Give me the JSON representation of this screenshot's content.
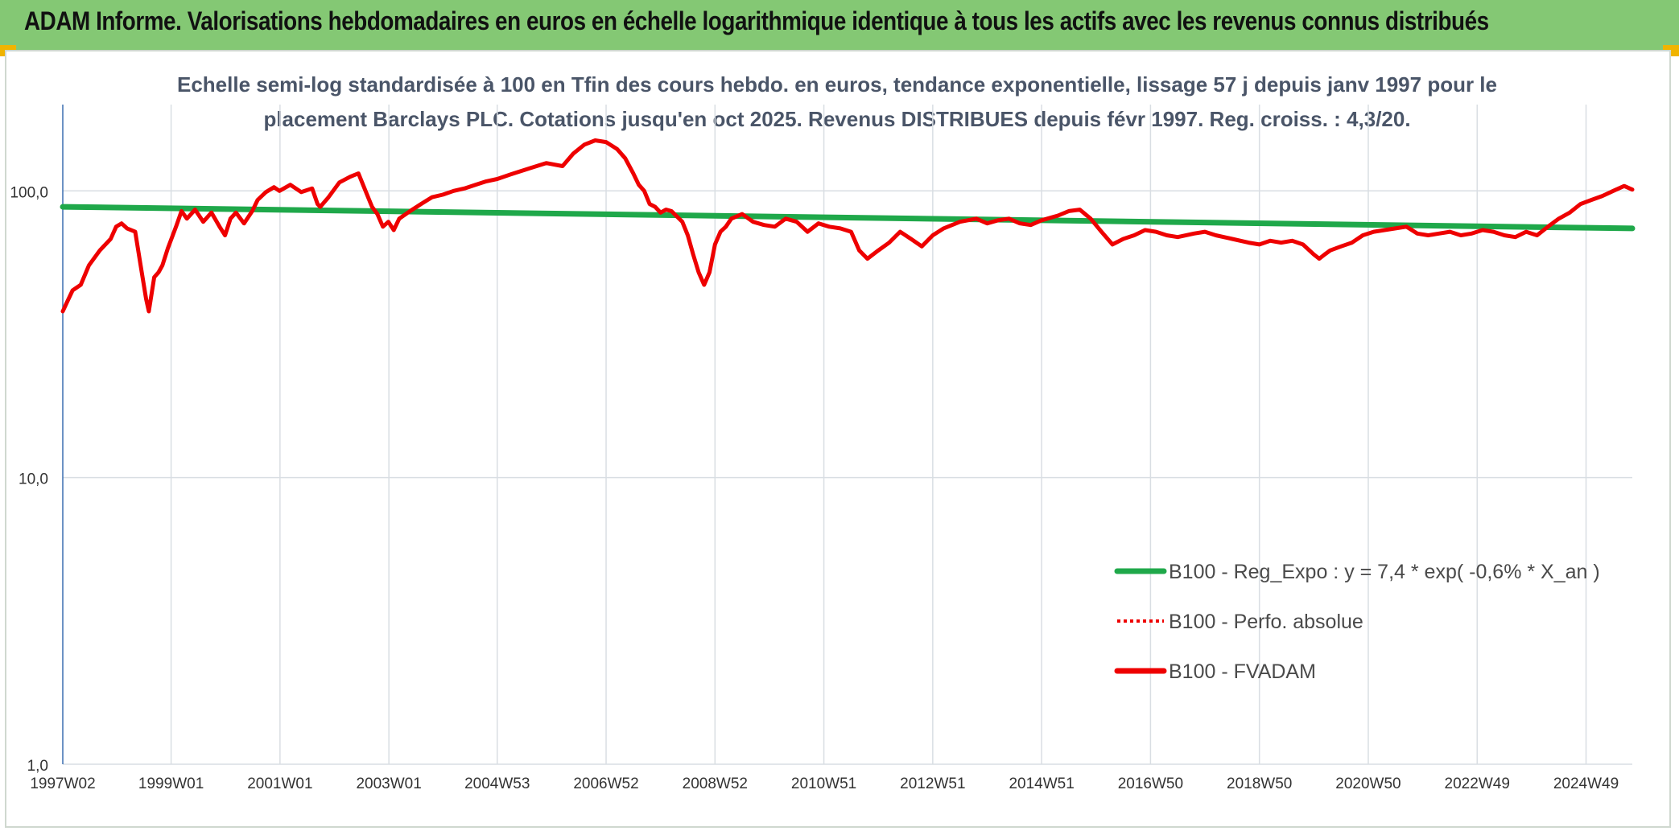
{
  "banner": {
    "title": "ADAM Informe. Valorisations hebdomadaires en euros en échelle logarithmique identique à tous les actifs avec les revenus connus distribués"
  },
  "colors": {
    "banner_bg": "#84c874",
    "corner": "#f0b400",
    "regression": "#1fa84a",
    "price": "#ee0000",
    "grid": "#d9dee3",
    "axis": "#3b6eb0",
    "subtitle": "#4a5568"
  },
  "chart_data": {
    "type": "line",
    "title_line1": "Echelle semi-log standardisée à 100 en Tfin des cours hebdo. en euros, tendance exponentielle, lissage 57 j depuis janv 1997 pour le",
    "title_line2": "placement Barclays PLC. Cotations jusqu'en oct 2025. Revenus DISTRIBUES depuis févr 1997. Reg. croiss. : 4,3/20.",
    "y_scale": "log",
    "ylim": [
      1,
      200
    ],
    "y_ticks": [
      {
        "value": 1,
        "label": "1,0"
      },
      {
        "value": 10,
        "label": "10,0"
      },
      {
        "value": 100,
        "label": "100,0"
      }
    ],
    "xlim": [
      1997.02,
      2025.85
    ],
    "x_ticks": [
      {
        "value": 1997.02,
        "label": "1997W02"
      },
      {
        "value": 1999.01,
        "label": "1999W01"
      },
      {
        "value": 2001.01,
        "label": "2001W01"
      },
      {
        "value": 2003.01,
        "label": "2003W01"
      },
      {
        "value": 2005.0,
        "label": "2004W53"
      },
      {
        "value": 2007.0,
        "label": "2006W52"
      },
      {
        "value": 2009.0,
        "label": "2008W52"
      },
      {
        "value": 2011.0,
        "label": "2010W51"
      },
      {
        "value": 2013.0,
        "label": "2012W51"
      },
      {
        "value": 2015.0,
        "label": "2014W51"
      },
      {
        "value": 2017.0,
        "label": "2016W50"
      },
      {
        "value": 2019.0,
        "label": "2018W50"
      },
      {
        "value": 2021.0,
        "label": "2020W50"
      },
      {
        "value": 2023.0,
        "label": "2022W49"
      },
      {
        "value": 2025.0,
        "label": "2024W49"
      }
    ],
    "grid": true,
    "legend_position": "bottom-right",
    "series": [
      {
        "name": "B100 - Reg_Expo : y = 7,4 * exp( -0,6% *  X_an )",
        "style": "solid-thick",
        "color": "#1fa84a",
        "x": [
          1997.02,
          2025.85
        ],
        "y": [
          88,
          74
        ]
      },
      {
        "name": "B100 - Perfo. absolue",
        "style": "dotted",
        "color": "#ee0000",
        "x": [],
        "y": []
      },
      {
        "name": "B100 - FVADAM",
        "style": "solid-thick",
        "color": "#ee0000",
        "x": [
          1997.02,
          1997.1,
          1997.2,
          1997.35,
          1997.5,
          1997.7,
          1997.9,
          1998.0,
          1998.1,
          1998.2,
          1998.35,
          1998.45,
          1998.55,
          1998.6,
          1998.7,
          1998.78,
          1998.85,
          1998.95,
          1999.1,
          1999.2,
          1999.3,
          1999.45,
          1999.6,
          1999.75,
          1999.9,
          2000.0,
          2000.1,
          2000.2,
          2000.35,
          2000.5,
          2000.6,
          2000.75,
          2000.9,
          2001.0,
          2001.2,
          2001.4,
          2001.6,
          2001.7,
          2001.75,
          2001.9,
          2002.1,
          2002.3,
          2002.45,
          2002.6,
          2002.7,
          2002.8,
          2002.9,
          2003.0,
          2003.1,
          2003.2,
          2003.4,
          2003.6,
          2003.8,
          2004.0,
          2004.2,
          2004.4,
          2004.6,
          2004.8,
          2005.0,
          2005.3,
          2005.6,
          2005.9,
          2006.2,
          2006.4,
          2006.6,
          2006.8,
          2007.0,
          2007.2,
          2007.35,
          2007.5,
          2007.6,
          2007.7,
          2007.8,
          2007.9,
          2008.0,
          2008.1,
          2008.2,
          2008.4,
          2008.5,
          2008.6,
          2008.7,
          2008.8,
          2008.9,
          2009.0,
          2009.1,
          2009.2,
          2009.3,
          2009.5,
          2009.7,
          2009.9,
          2010.1,
          2010.3,
          2010.5,
          2010.7,
          2010.9,
          2011.1,
          2011.3,
          2011.5,
          2011.65,
          2011.8,
          2012.0,
          2012.2,
          2012.4,
          2012.6,
          2012.8,
          2013.0,
          2013.2,
          2013.5,
          2013.8,
          2014.0,
          2014.2,
          2014.4,
          2014.6,
          2014.8,
          2015.0,
          2015.3,
          2015.5,
          2015.7,
          2015.9,
          2016.1,
          2016.3,
          2016.5,
          2016.7,
          2016.9,
          2017.1,
          2017.3,
          2017.5,
          2017.8,
          2018.0,
          2018.2,
          2018.5,
          2018.8,
          2019.0,
          2019.2,
          2019.4,
          2019.6,
          2019.8,
          2020.0,
          2020.1,
          2020.2,
          2020.3,
          2020.5,
          2020.7,
          2020.9,
          2021.1,
          2021.3,
          2021.5,
          2021.7,
          2021.9,
          2022.1,
          2022.3,
          2022.5,
          2022.7,
          2022.9,
          2023.1,
          2023.3,
          2023.5,
          2023.7,
          2023.9,
          2024.1,
          2024.3,
          2024.5,
          2024.7,
          2024.9,
          2025.1,
          2025.3,
          2025.5,
          2025.7,
          2025.85
        ],
        "y": [
          38,
          41,
          45,
          47,
          55,
          62,
          68,
          75,
          77,
          74,
          72,
          55,
          42,
          38,
          50,
          52,
          55,
          63,
          75,
          85,
          80,
          86,
          78,
          84,
          75,
          70,
          80,
          84,
          77,
          85,
          93,
          99,
          103,
          100,
          105,
          99,
          102,
          90,
          88,
          95,
          107,
          112,
          115,
          98,
          88,
          83,
          75,
          78,
          73,
          80,
          85,
          90,
          95,
          97,
          100,
          102,
          105,
          108,
          110,
          115,
          120,
          125,
          122,
          135,
          145,
          150,
          148,
          140,
          130,
          115,
          105,
          100,
          90,
          88,
          84,
          86,
          85,
          78,
          70,
          60,
          52,
          47,
          52,
          65,
          72,
          75,
          80,
          83,
          78,
          76,
          75,
          80,
          78,
          72,
          77,
          75,
          74,
          72,
          62,
          58,
          62,
          66,
          72,
          68,
          64,
          70,
          74,
          78,
          80,
          77,
          79,
          80,
          77,
          76,
          79,
          82,
          85,
          86,
          80,
          72,
          65,
          68,
          70,
          73,
          72,
          70,
          69,
          71,
          72,
          70,
          68,
          66,
          65,
          67,
          66,
          67,
          65,
          60,
          58,
          60,
          62,
          64,
          66,
          70,
          72,
          73,
          74,
          75,
          71,
          70,
          71,
          72,
          70,
          71,
          73,
          72,
          70,
          69,
          72,
          70,
          75,
          80,
          84,
          90,
          93,
          96,
          100,
          104,
          101
        ]
      }
    ]
  }
}
